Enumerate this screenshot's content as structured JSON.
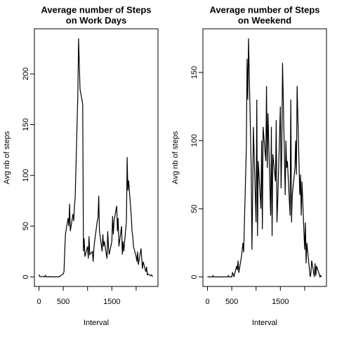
{
  "chart_data": [
    {
      "type": "line",
      "title": [
        "Average number of Steps",
        "on Work Days"
      ],
      "xlabel": "Interval",
      "ylabel": "Avg nb of steps",
      "color": "#000000",
      "x": [
        0,
        15,
        30,
        45,
        100,
        115,
        130,
        145,
        200,
        215,
        230,
        245,
        300,
        315,
        330,
        345,
        400,
        415,
        430,
        445,
        500,
        515,
        530,
        545,
        600,
        615,
        630,
        645,
        700,
        715,
        730,
        745,
        800,
        815,
        830,
        845,
        900,
        915,
        930,
        945,
        1000,
        1015,
        1030,
        1045,
        1100,
        1115,
        1130,
        1145,
        1200,
        1215,
        1230,
        1245,
        1300,
        1315,
        1330,
        1345,
        1400,
        1415,
        1430,
        1445,
        1500,
        1515,
        1530,
        1545,
        1600,
        1615,
        1630,
        1645,
        1700,
        1715,
        1730,
        1745,
        1800,
        1815,
        1830,
        1845,
        1900,
        1915,
        1930,
        1945,
        2000,
        2015,
        2030,
        2045,
        2100,
        2115,
        2130,
        2145,
        2200,
        2215,
        2230,
        2245,
        2300,
        2315,
        2330,
        2345
      ],
      "values": [
        2.3,
        0.3,
        0.1,
        0.4,
        0.2,
        0.1,
        1.5,
        0,
        0.2,
        0,
        0.4,
        0,
        0,
        0.1,
        0,
        0.3,
        0,
        0.6,
        0.2,
        1.2,
        3,
        5.3,
        25,
        42,
        58,
        50,
        72,
        45,
        62,
        55,
        70,
        78,
        180,
        235,
        210,
        185,
        170,
        25,
        38,
        20,
        30,
        18,
        40,
        22,
        25,
        15,
        28,
        35,
        55,
        58,
        80,
        45,
        25,
        42,
        30,
        35,
        18,
        45,
        30,
        22,
        35,
        60,
        42,
        55,
        70,
        45,
        58,
        30,
        50,
        22,
        35,
        25,
        55,
        118,
        85,
        95,
        60,
        45,
        40,
        30,
        20,
        15,
        25,
        12,
        28,
        18,
        8,
        15,
        5,
        10,
        2,
        3,
        1,
        2,
        1,
        0.5
      ],
      "xlim": [
        -94.2,
        2449.2
      ],
      "xticks": [
        0,
        500,
        1500
      ],
      "xticks_unlabeled": [
        1000,
        2000
      ],
      "ylim": [
        -9.4,
        244.4
      ],
      "yticks": [
        0,
        50,
        100,
        150,
        200
      ]
    },
    {
      "type": "line",
      "title": [
        "Average number of Steps",
        "on Weekend"
      ],
      "xlabel": "Interval",
      "ylabel": "Avg nb of steps",
      "color": "#000000",
      "x": [
        0,
        15,
        30,
        45,
        100,
        115,
        130,
        145,
        200,
        215,
        230,
        245,
        300,
        315,
        330,
        345,
        400,
        415,
        430,
        445,
        500,
        515,
        530,
        545,
        600,
        615,
        630,
        645,
        700,
        715,
        730,
        745,
        800,
        815,
        830,
        845,
        900,
        915,
        930,
        945,
        1000,
        1015,
        1030,
        1045,
        1100,
        1115,
        1130,
        1145,
        1200,
        1215,
        1230,
        1245,
        1300,
        1315,
        1330,
        1345,
        1400,
        1415,
        1430,
        1445,
        1500,
        1515,
        1530,
        1545,
        1600,
        1615,
        1630,
        1645,
        1700,
        1715,
        1730,
        1745,
        1800,
        1815,
        1830,
        1845,
        1900,
        1915,
        1930,
        1945,
        2000,
        2015,
        2030,
        2045,
        2100,
        2115,
        2130,
        2145,
        2200,
        2215,
        2230,
        2245,
        2300,
        2315,
        2330,
        2345
      ],
      "values": [
        0,
        0,
        0,
        0,
        0,
        1,
        0,
        0,
        0,
        0,
        0,
        0,
        0,
        0,
        0,
        0,
        0,
        0,
        1,
        0,
        0,
        3,
        2,
        0,
        8,
        5,
        12,
        3,
        15,
        20,
        25,
        18,
        95,
        160,
        130,
        175,
        80,
        20,
        60,
        110,
        40,
        130,
        30,
        85,
        50,
        100,
        35,
        110,
        85,
        140,
        80,
        120,
        45,
        110,
        30,
        90,
        70,
        115,
        40,
        55,
        125,
        65,
        95,
        157,
        60,
        100,
        80,
        85,
        45,
        130,
        40,
        60,
        80,
        100,
        75,
        140,
        60,
        75,
        45,
        70,
        20,
        40,
        10,
        25,
        5,
        0,
        3,
        12,
        0,
        10,
        1,
        8,
        2,
        0,
        1,
        0
      ],
      "xlim": [
        -94.2,
        2449.2
      ],
      "xticks": [
        0,
        500,
        1500
      ],
      "xticks_unlabeled": [
        1000,
        2000
      ],
      "ylim": [
        -7,
        182
      ],
      "yticks": [
        0,
        50,
        100,
        150
      ]
    }
  ]
}
